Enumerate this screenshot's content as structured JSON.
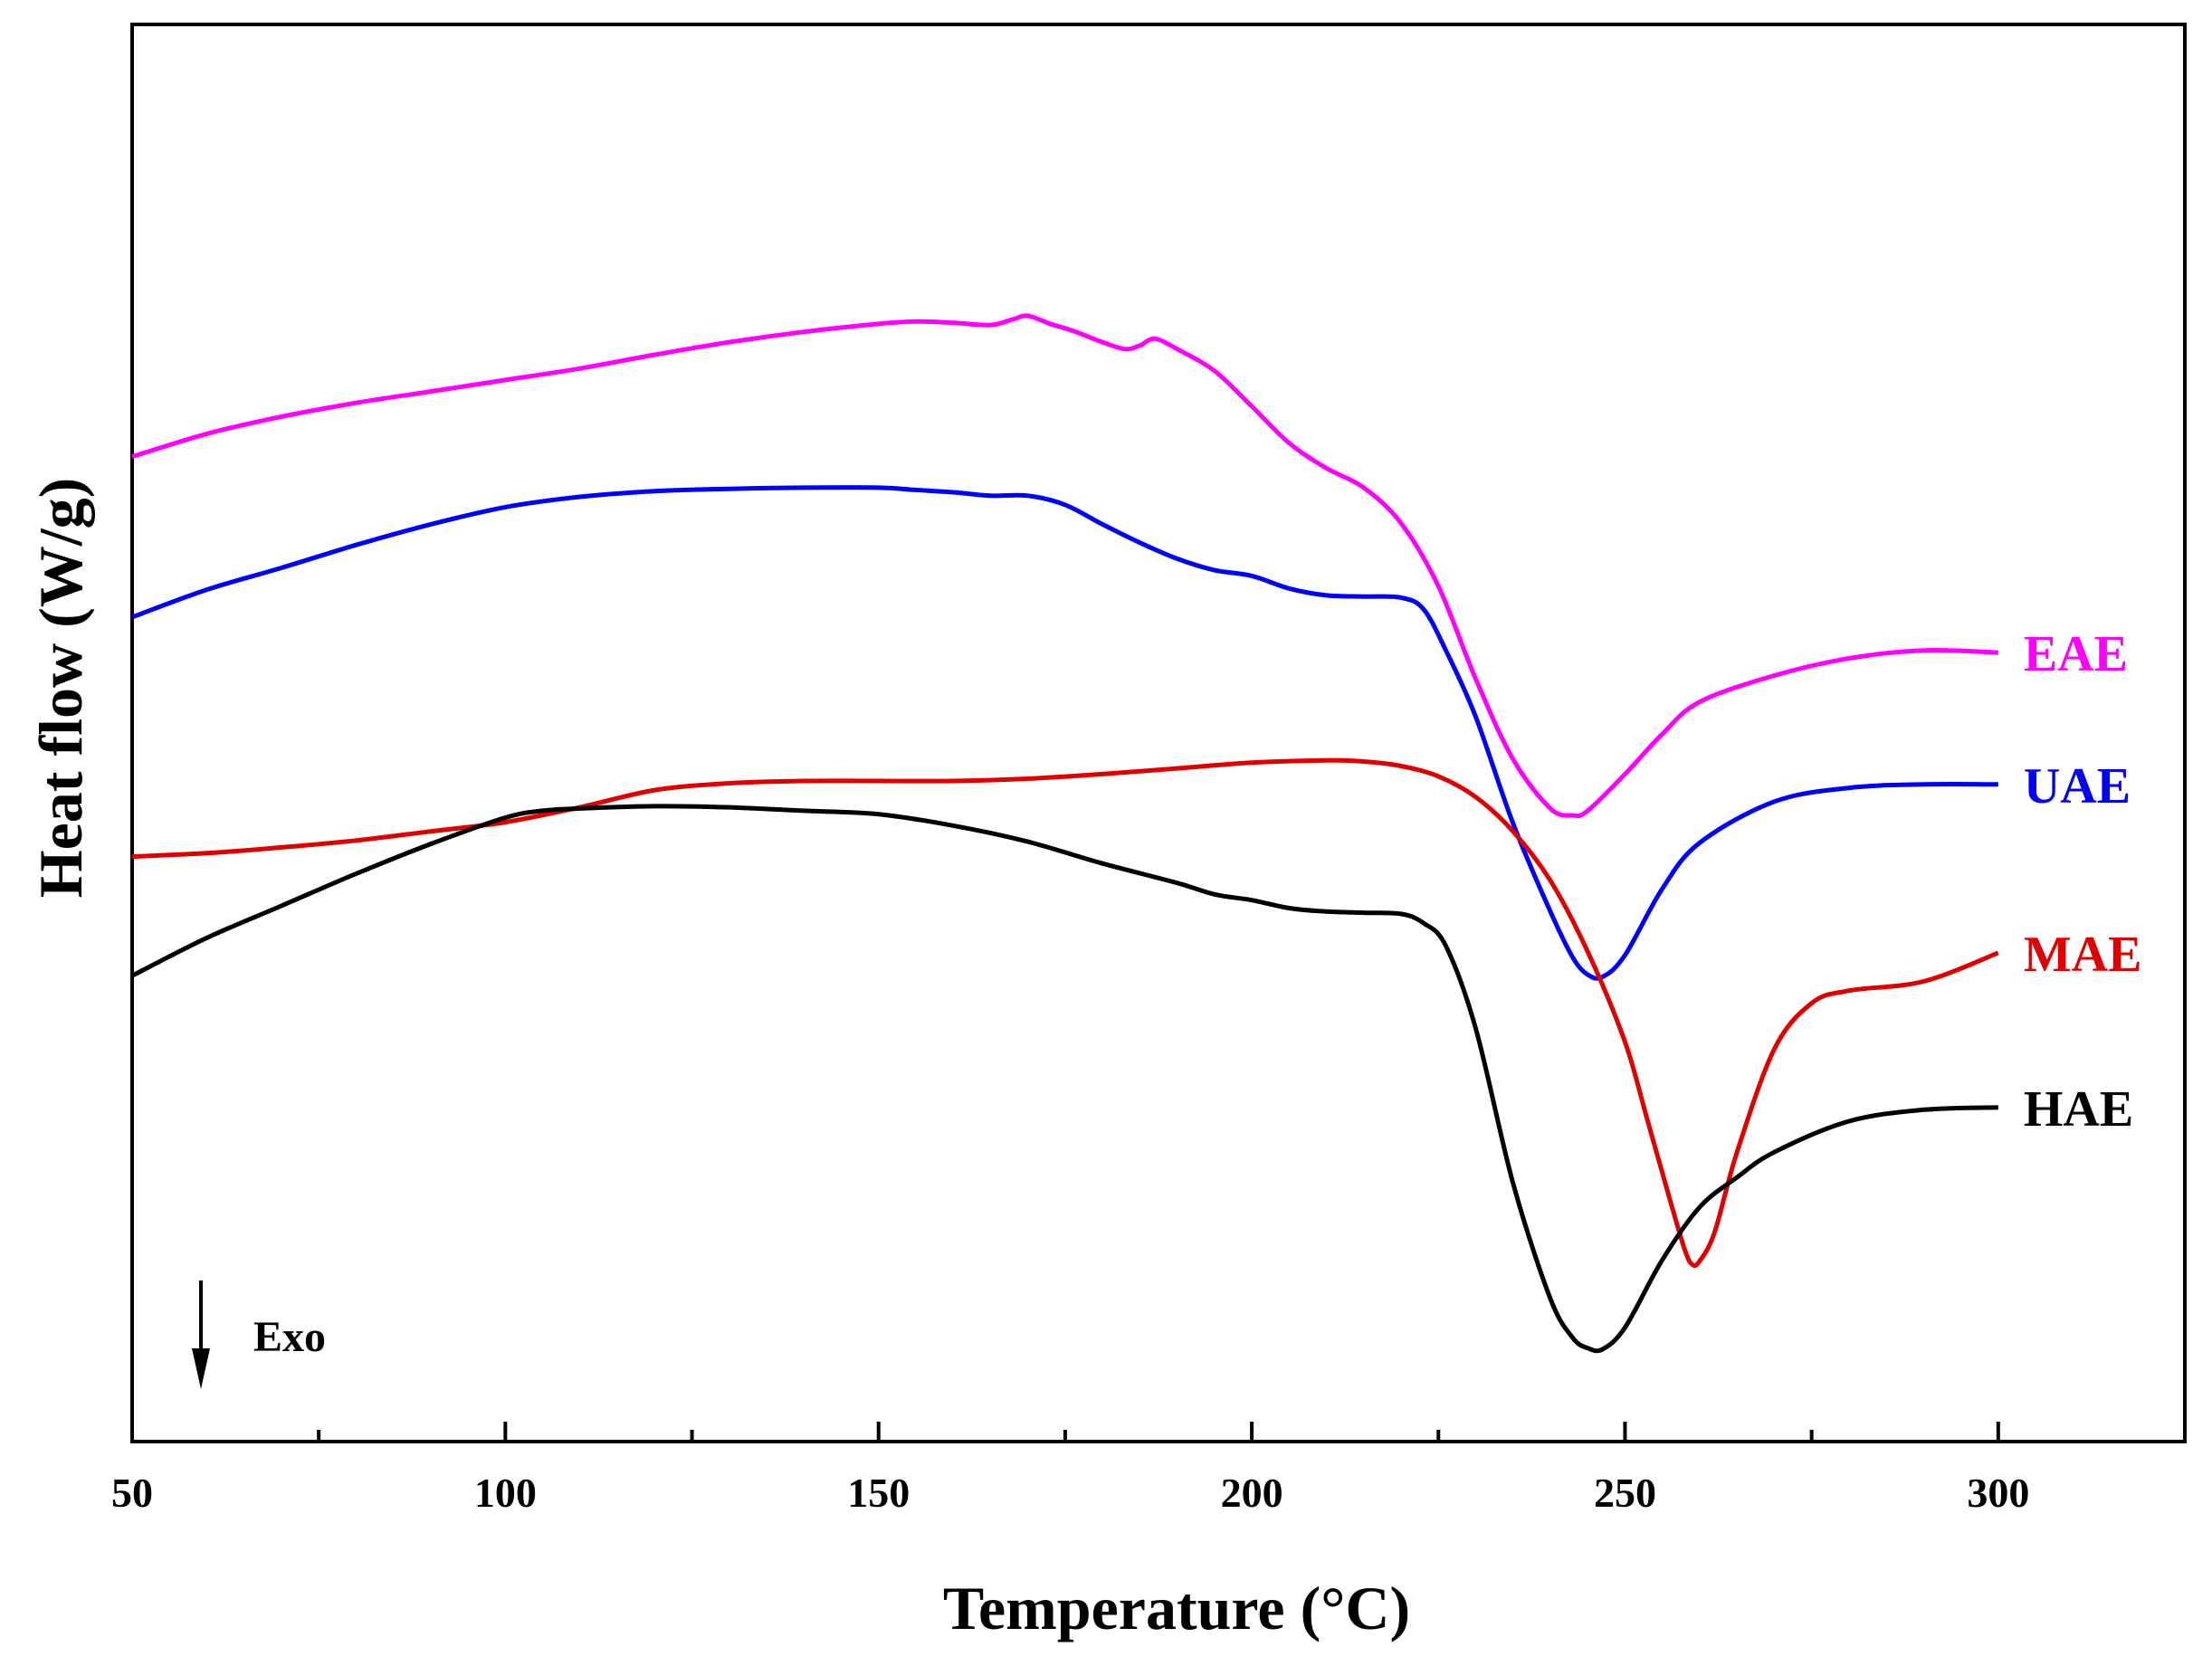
{
  "chart_data": {
    "type": "line",
    "title": "",
    "xlabel": "Temperature (°C)",
    "ylabel": "Heat flow (W/g)",
    "xlim": [
      50,
      325
    ],
    "ylim": [
      0,
      100
    ],
    "xticks": [
      "50",
      "100",
      "150",
      "200",
      "250",
      "300"
    ],
    "x_tick_values": [
      50,
      100,
      150,
      200,
      250,
      300
    ],
    "y_tick_labels_shown": false,
    "annotation": {
      "text": "Exo",
      "direction": "down"
    },
    "series": [
      {
        "name": "EAE",
        "color": "#ff00ff",
        "x": [
          50,
          60,
          70,
          80,
          90,
          100,
          110,
          120,
          130,
          140,
          150,
          155,
          160,
          165,
          168,
          170,
          173,
          176,
          180,
          183,
          185,
          187,
          190,
          195,
          200,
          205,
          210,
          215,
          220,
          225,
          230,
          235,
          240,
          243,
          245,
          250,
          255,
          260,
          270,
          280,
          290,
          300
        ],
        "y": [
          78.3,
          80.3,
          81.8,
          83.0,
          84.0,
          85.0,
          86.0,
          87.2,
          88.3,
          89.2,
          89.9,
          90.1,
          90.0,
          89.8,
          90.3,
          90.6,
          89.9,
          89.3,
          88.3,
          87.7,
          88.0,
          88.6,
          87.7,
          85.8,
          82.7,
          79.5,
          77.3,
          75.6,
          72.5,
          67.0,
          58.9,
          51.9,
          47.6,
          47.0,
          47.4,
          50.6,
          54.1,
          56.9,
          59.2,
          60.7,
          61.4,
          61.2
        ]
      },
      {
        "name": "UAE",
        "color": "#0000ff",
        "x": [
          50,
          60,
          70,
          80,
          90,
          100,
          110,
          120,
          130,
          140,
          150,
          155,
          160,
          165,
          170,
          175,
          180,
          185,
          190,
          195,
          200,
          205,
          210,
          215,
          220,
          223,
          226,
          230,
          235,
          240,
          243,
          245,
          247,
          250,
          255,
          260,
          270,
          280,
          290,
          300
        ],
        "y": [
          64.3,
          66.7,
          68.6,
          70.6,
          72.4,
          73.9,
          74.8,
          75.3,
          75.5,
          75.6,
          75.6,
          75.4,
          75.2,
          74.9,
          74.9,
          74.1,
          72.4,
          70.8,
          69.4,
          68.4,
          67.9,
          66.8,
          66.2,
          66.1,
          66.0,
          65.0,
          61.4,
          55.6,
          46.3,
          38.6,
          34.6,
          33.1,
          32.9,
          34.8,
          40.6,
          44.6,
          48.2,
          49.4,
          49.7,
          49.7
        ]
      },
      {
        "name": "MAE",
        "color": "#e00000",
        "x": [
          50,
          60,
          70,
          80,
          90,
          100,
          110,
          120,
          130,
          140,
          150,
          160,
          170,
          180,
          190,
          200,
          210,
          215,
          220,
          225,
          230,
          235,
          240,
          245,
          250,
          253,
          256,
          258,
          259,
          260,
          262,
          265,
          270,
          275,
          280,
          290,
          300
        ],
        "y": [
          43.4,
          43.7,
          44.2,
          44.8,
          45.6,
          46.4,
          47.7,
          49.2,
          49.8,
          50.0,
          50.0,
          50.0,
          50.2,
          50.6,
          51.1,
          51.6,
          51.8,
          51.7,
          51.3,
          50.4,
          48.6,
          45.6,
          41.3,
          35.1,
          27.2,
          20.4,
          13.5,
          9.1,
          7.8,
          8.1,
          10.6,
          17.6,
          26.6,
          30.6,
          31.7,
          32.5,
          35.0
        ]
      },
      {
        "name": "HAE",
        "color": "#000000",
        "x": [
          50,
          60,
          70,
          80,
          90,
          100,
          105,
          110,
          120,
          130,
          140,
          150,
          160,
          170,
          180,
          190,
          195,
          200,
          205,
          210,
          215,
          220,
          223,
          226,
          230,
          235,
          240,
          243,
          245,
          247,
          250,
          255,
          260,
          265,
          270,
          280,
          290,
          300
        ],
        "y": [
          33.0,
          36.3,
          39.1,
          41.9,
          44.5,
          46.8,
          47.4,
          47.6,
          47.8,
          47.7,
          47.4,
          47.1,
          46.1,
          44.7,
          42.8,
          41.1,
          40.1,
          39.6,
          38.9,
          38.6,
          38.5,
          38.4,
          37.6,
          35.6,
          28.4,
          14.9,
          4.8,
          1.4,
          0.5,
          0.4,
          2.3,
          8.2,
          12.8,
          15.4,
          17.6,
          20.3,
          21.3,
          21.5
        ]
      }
    ]
  }
}
